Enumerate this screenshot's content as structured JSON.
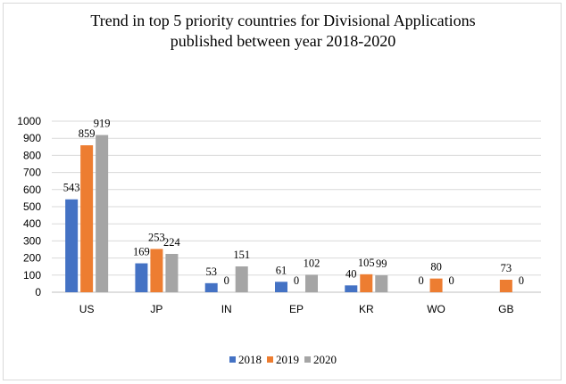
{
  "chart_data": {
    "type": "bar",
    "title": "Trend in top 5 priority countries for Divisional Applications published between year 2018-2020",
    "title_lines": [
      "Trend in top 5 priority countries for Divisional Applications",
      "published between year 2018-2020"
    ],
    "xlabel": "",
    "ylabel": "",
    "ylim": [
      0,
      1000
    ],
    "yticks": [
      "0",
      "100",
      "200",
      "300",
      "400",
      "500",
      "600",
      "700",
      "800",
      "900",
      "1000"
    ],
    "categories": [
      "US",
      "JP",
      "IN",
      "EP",
      "KR",
      "WO",
      "GB"
    ],
    "grid": true,
    "legend_position": "bottom",
    "series": [
      {
        "name": "2018",
        "color": "#4472c4",
        "values": [
          543,
          169,
          53,
          61,
          40,
          0,
          null
        ],
        "labels": [
          "543",
          "169",
          "53",
          "61",
          "40",
          "0",
          ""
        ]
      },
      {
        "name": "2019",
        "color": "#ed7d31",
        "values": [
          859,
          253,
          0,
          0,
          105,
          80,
          73
        ],
        "labels": [
          "859",
          "253",
          "0",
          "0",
          "105",
          "80",
          "73"
        ]
      },
      {
        "name": "2020",
        "color": "#a5a5a5",
        "values": [
          919,
          224,
          151,
          102,
          99,
          0,
          0
        ],
        "labels": [
          "919",
          "224",
          "151",
          "102",
          "99",
          "0",
          "0"
        ]
      }
    ]
  }
}
